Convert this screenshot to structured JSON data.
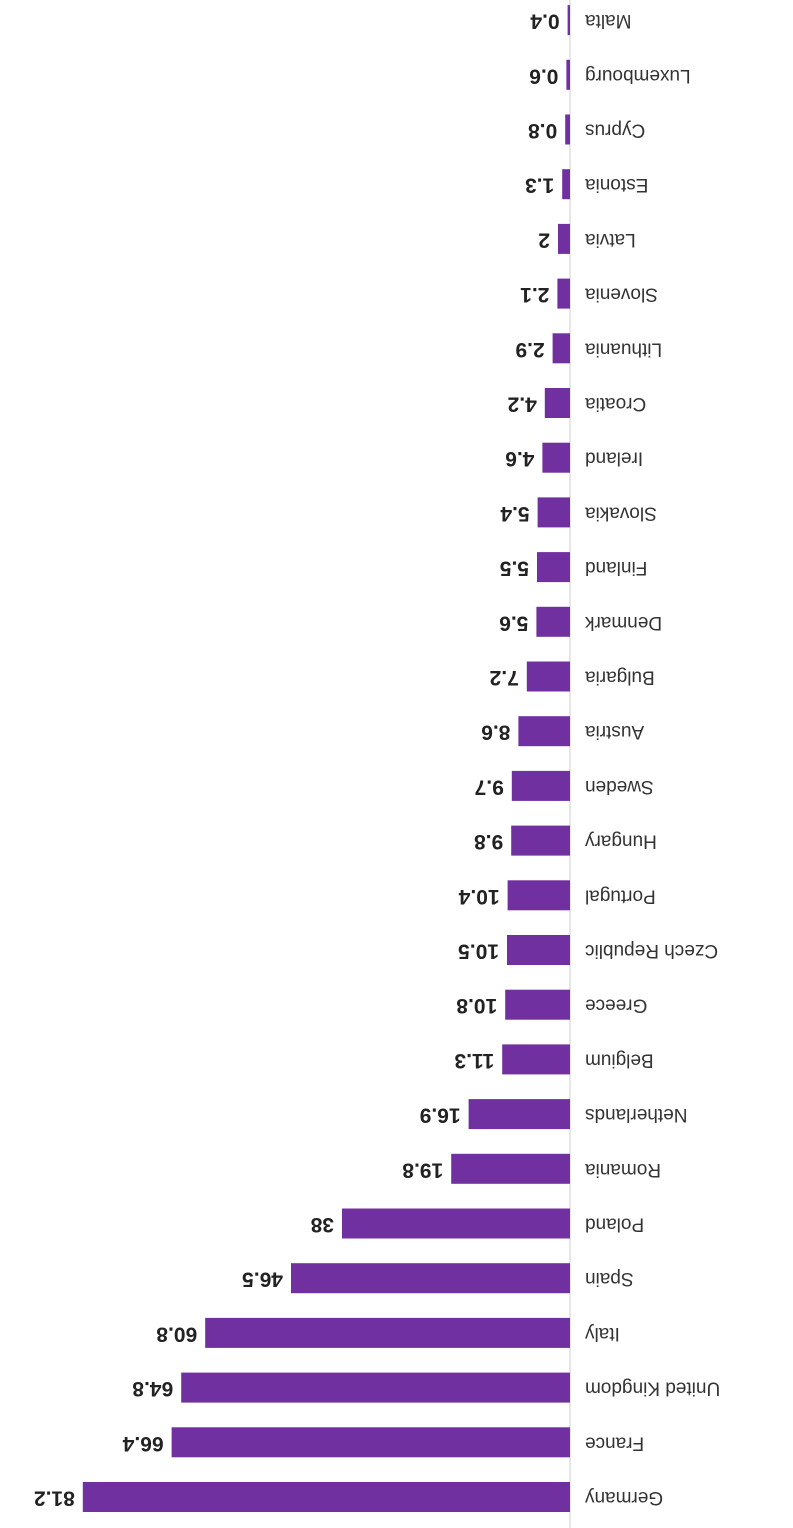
{
  "chart_data": {
    "type": "barh",
    "categories": [
      "Germany",
      "France",
      "United Kingdom",
      "Italy",
      "Spain",
      "Poland",
      "Romania",
      "Netherlands",
      "Belgium",
      "Greece",
      "Czech Republic",
      "Portugal",
      "Hungary",
      "Sweden",
      "Austria",
      "Bulgaria",
      "Denmark",
      "Finland",
      "Slovakia",
      "Ireland",
      "Croatia",
      "Lithuania",
      "Slovenia",
      "Latvia",
      "Estonia",
      "Cyprus",
      "Luxembourg",
      "Malta"
    ],
    "values": [
      81.2,
      66.4,
      64.8,
      60.8,
      46.5,
      38,
      19.8,
      16.9,
      11.3,
      10.8,
      10.5,
      10.4,
      9.8,
      9.7,
      8.6,
      7.2,
      5.6,
      5.5,
      5.4,
      4.6,
      4.2,
      2.9,
      2.1,
      2,
      1.3,
      0.8,
      0.6,
      0.4
    ],
    "color": "#7030a0"
  }
}
